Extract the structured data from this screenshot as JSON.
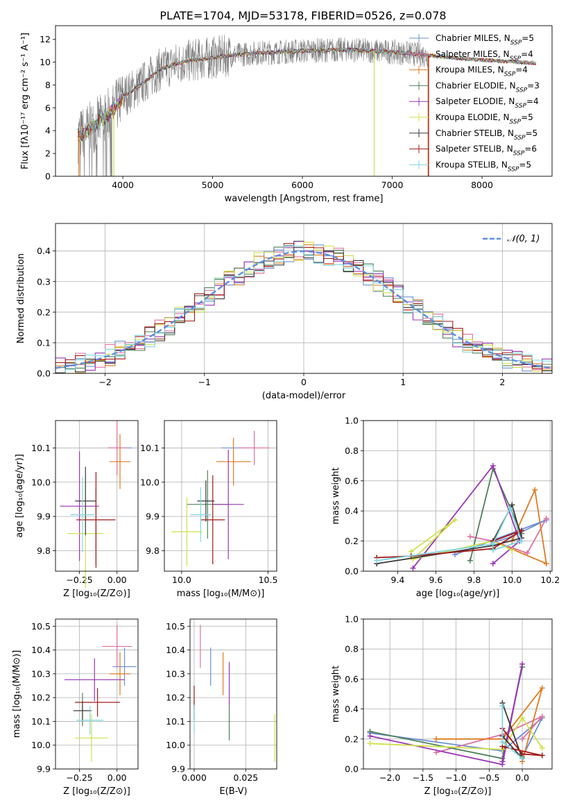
{
  "figure_title": "PLATE=1704, MJD=53178, FIBERID=0526, z=0.078",
  "colors": {
    "Chabrier MILES": "#6a8fd6",
    "Salpeter MILES": "#e06fa0",
    "Kroupa MILES": "#e07a1f",
    "Chabrier ELODIE": "#4f7f5a",
    "Salpeter ELODIE": "#9a35b5",
    "Kroupa ELODIE": "#cfe04a",
    "Chabrier STELIB": "#3a3a3a",
    "Salpeter STELIB": "#a31818",
    "Kroupa STELIB": "#7fd6e0",
    "data": "#808080",
    "normal": "#5b8ee0"
  },
  "chart_data": [
    {
      "id": "spectrum",
      "type": "line",
      "title": "PLATE=1704, MJD=53178, FIBERID=0526, z=0.078",
      "xlabel": "wavelength [Angstrom, rest frame]",
      "ylabel": "Flux [fλ10⁻¹⁷ erg cm⁻² s⁻¹ A⁻¹]",
      "xlim": [
        3250,
        8780
      ],
      "ylim": [
        0,
        13.2
      ],
      "xticks": [
        4000,
        5000,
        6000,
        7000,
        8000
      ],
      "yticks": [
        0,
        2,
        4,
        6,
        8,
        10,
        12
      ],
      "legend_position": "top-right",
      "legend": [
        {
          "label": "Chabrier MILES, N",
          "sub": "SSP",
          "tail": "=5"
        },
        {
          "label": "Salpeter MILES, N",
          "sub": "SSP",
          "tail": "=4"
        },
        {
          "label": "Kroupa MILES, N",
          "sub": "SSP",
          "tail": "=4"
        },
        {
          "label": "Chabrier ELODIE, N",
          "sub": "SSP",
          "tail": "=3"
        },
        {
          "label": "Salpeter ELODIE, N",
          "sub": "SSP",
          "tail": "=4"
        },
        {
          "label": "Kroupa ELODIE, N",
          "sub": "SSP",
          "tail": "=5"
        },
        {
          "label": "Chabrier STELIB, N",
          "sub": "SSP",
          "tail": "=5"
        },
        {
          "label": "Salpeter STELIB, N",
          "sub": "SSP",
          "tail": "=6"
        },
        {
          "label": "Kroupa STELIB, N",
          "sub": "SSP",
          "tail": "=5"
        }
      ],
      "continuum": {
        "x": [
          3500,
          3700,
          3900,
          4000,
          4200,
          4400,
          4600,
          4800,
          5000,
          5200,
          5500,
          6000,
          6500,
          7000,
          7400,
          7800,
          8200,
          8600
        ],
        "y": [
          3.5,
          4.5,
          5.8,
          7.0,
          8.0,
          9.3,
          9.9,
          10.2,
          10.4,
          10.6,
          10.8,
          11.0,
          11.1,
          10.9,
          10.6,
          10.3,
          10.1,
          9.9
        ]
      },
      "data_range": [
        3500,
        7400
      ]
    },
    {
      "id": "residuals",
      "type": "line",
      "xlabel": "(data-model)/error",
      "ylabel": "Normed distribution",
      "xlim": [
        -2.5,
        2.5
      ],
      "ylim": [
        0,
        0.49
      ],
      "xticks": [
        -2,
        -1,
        0,
        1,
        2
      ],
      "yticks": [
        0,
        0.1,
        0.2,
        0.3,
        0.4
      ],
      "legend": [
        "𝒩(0, 1)"
      ],
      "legend_position": "top-right",
      "bin_width": 0.1,
      "reference": {
        "name": "𝒩(0, 1)",
        "mean": 0,
        "sigma": 1
      }
    },
    {
      "id": "age_vs_Z",
      "type": "scatter",
      "xlabel": "Z [log₁₀(Z/Z⊙)]",
      "ylabel": "age  [log₁₀(age/yr)]",
      "xlim": [
        -0.41,
        0.14
      ],
      "ylim": [
        9.74,
        10.18
      ],
      "xticks": [
        -0.25,
        0.0
      ],
      "xtick_labels": [
        "−0.25",
        "0.00"
      ],
      "yticks": [
        9.8,
        9.9,
        10.0,
        10.1
      ],
      "points": [
        {
          "series": "Chabrier MILES",
          "x": 0.02,
          "xerr": 0.08,
          "y": 10.1,
          "yerr": 0.0
        },
        {
          "series": "Salpeter MILES",
          "x": 0.0,
          "xerr": 0.06,
          "y": 10.1,
          "yerr": 0.08
        },
        {
          "series": "Kroupa MILES",
          "x": 0.02,
          "xerr": 0.07,
          "y": 10.06,
          "yerr": 0.08
        },
        {
          "series": "Chabrier ELODIE",
          "x": -0.14,
          "xerr": 0.0,
          "y": 9.87,
          "yerr": 0.11
        },
        {
          "series": "Salpeter ELODIE",
          "x": -0.25,
          "xerr": 0.13,
          "y": 9.93,
          "yerr": 0.16
        },
        {
          "series": "Kroupa ELODIE",
          "x": -0.21,
          "xerr": 0.12,
          "y": 9.85,
          "yerr": 0.16
        },
        {
          "series": "Chabrier STELIB",
          "x": -0.21,
          "xerr": 0.07,
          "y": 9.945,
          "yerr": 0.1
        },
        {
          "series": "Salpeter STELIB",
          "x": -0.14,
          "xerr": 0.13,
          "y": 9.89,
          "yerr": 0.14
        },
        {
          "series": "Kroupa STELIB",
          "x": -0.23,
          "xerr": 0.08,
          "y": 9.905,
          "yerr": 0.11
        }
      ]
    },
    {
      "id": "age_vs_mass",
      "type": "scatter",
      "xlabel": "mass [log₁₀(M/M⊙)]",
      "ylabel": "",
      "xlim": [
        9.9,
        10.55
      ],
      "ylim": [
        9.74,
        10.18
      ],
      "xticks": [
        10.0,
        10.5
      ],
      "yticks": [
        9.8,
        9.9,
        10.0,
        10.1
      ],
      "points": [
        {
          "series": "Chabrier MILES",
          "x": 10.33,
          "xerr": 0.1,
          "y": 10.1,
          "yerr": 0.0
        },
        {
          "series": "Salpeter MILES",
          "x": 10.42,
          "xerr": 0.09,
          "y": 10.1,
          "yerr": 0.05
        },
        {
          "series": "Kroupa MILES",
          "x": 10.3,
          "xerr": 0.1,
          "y": 10.06,
          "yerr": 0.07
        },
        {
          "series": "Chabrier ELODIE",
          "x": 10.15,
          "xerr": 0.12,
          "y": 9.935,
          "yerr": 0.1
        },
        {
          "series": "Salpeter ELODIE",
          "x": 10.27,
          "xerr": 0.09,
          "y": 9.935,
          "yerr": 0.16
        },
        {
          "series": "Kroupa ELODIE",
          "x": 10.03,
          "xerr": 0.09,
          "y": 9.855,
          "yerr": 0.1
        },
        {
          "series": "Chabrier STELIB",
          "x": 10.14,
          "xerr": 0.05,
          "y": 9.945,
          "yerr": 0.06
        },
        {
          "series": "Salpeter STELIB",
          "x": 10.18,
          "xerr": 0.07,
          "y": 9.89,
          "yerr": 0.13
        },
        {
          "series": "Kroupa STELIB",
          "x": 10.11,
          "xerr": 0.06,
          "y": 9.905,
          "yerr": 0.08
        }
      ]
    },
    {
      "id": "weight_vs_age",
      "type": "line",
      "xlabel": "age  [log₁₀(age/yr)]",
      "ylabel": "mass weight",
      "xlim": [
        9.22,
        10.21
      ],
      "ylim": [
        0,
        1.0
      ],
      "xticks": [
        9.4,
        9.6,
        9.8,
        10.0,
        10.2
      ],
      "yticks": [
        0,
        0.2,
        0.4,
        0.6,
        0.8,
        1.0
      ],
      "series": [
        {
          "name": "Chabrier MILES",
          "x": [
            9.7,
            10.18,
            10.0,
            9.9
          ],
          "y": [
            0.11,
            0.34,
            0.23,
            0.19
          ]
        },
        {
          "name": "Salpeter MILES",
          "x": [
            9.78,
            9.9,
            10.08,
            10.18
          ],
          "y": [
            0.23,
            0.2,
            0.12,
            0.35
          ]
        },
        {
          "name": "Kroupa MILES",
          "x": [
            10.0,
            10.12,
            10.18,
            9.9
          ],
          "y": [
            0.2,
            0.54,
            0.05,
            0.2
          ]
        },
        {
          "name": "Chabrier ELODIE",
          "x": [
            9.78,
            9.9,
            10.05
          ],
          "y": [
            0.07,
            0.68,
            0.25
          ]
        },
        {
          "name": "Salpeter ELODIE",
          "x": [
            9.48,
            9.9,
            10.04,
            9.9
          ],
          "y": [
            0.02,
            0.7,
            0.2,
            0.05
          ]
        },
        {
          "name": "Kroupa ELODIE",
          "x": [
            9.47,
            9.7,
            9.48,
            9.9,
            10.0
          ],
          "y": [
            0.13,
            0.34,
            0.08,
            0.2,
            0.14
          ]
        },
        {
          "name": "Chabrier STELIB",
          "x": [
            9.29,
            9.9,
            10.05,
            10.0,
            9.9
          ],
          "y": [
            0.05,
            0.17,
            0.22,
            0.44,
            0.2
          ]
        },
        {
          "name": "Salpeter STELIB",
          "x": [
            9.29,
            9.47,
            9.9,
            10.05,
            9.9
          ],
          "y": [
            0.09,
            0.1,
            0.15,
            0.27,
            0.2
          ]
        },
        {
          "name": "Kroupa STELIB",
          "x": [
            9.29,
            9.9,
            9.99,
            10.05,
            9.9
          ],
          "y": [
            0.07,
            0.18,
            0.42,
            0.2,
            0.14
          ]
        }
      ]
    },
    {
      "id": "mass_vs_Z",
      "type": "scatter",
      "xlabel": "Z [log₁₀(Z/Z⊙)]",
      "ylabel": "mass [log₁₀(M/M⊙)]",
      "xlim": [
        -0.41,
        0.14
      ],
      "ylim": [
        9.9,
        10.53
      ],
      "xticks": [
        -0.25,
        0.0
      ],
      "xtick_labels": [
        "−0.25",
        "0.00"
      ],
      "yticks": [
        9.9,
        10.0,
        10.1,
        10.2,
        10.3,
        10.4,
        10.5
      ],
      "points": [
        {
          "series": "Chabrier MILES",
          "x": 0.05,
          "xerr": 0.08,
          "y": 10.33,
          "yerr": 0.08
        },
        {
          "series": "Salpeter MILES",
          "x": 0.0,
          "xerr": 0.1,
          "y": 10.415,
          "yerr": 0.09
        },
        {
          "series": "Kroupa MILES",
          "x": 0.02,
          "xerr": 0.07,
          "y": 10.3,
          "yerr": 0.09
        },
        {
          "series": "Chabrier ELODIE",
          "x": -0.23,
          "xerr": 0.0,
          "y": 10.15,
          "yerr": 0.07
        },
        {
          "series": "Salpeter ELODIE",
          "x": -0.15,
          "xerr": 0.2,
          "y": 10.275,
          "yerr": 0.09
        },
        {
          "series": "Kroupa ELODIE",
          "x": -0.17,
          "xerr": 0.11,
          "y": 10.03,
          "yerr": 0.1
        },
        {
          "series": "Chabrier STELIB",
          "x": -0.23,
          "xerr": 0.06,
          "y": 10.145,
          "yerr": 0.04
        },
        {
          "series": "Salpeter STELIB",
          "x": -0.13,
          "xerr": 0.15,
          "y": 10.18,
          "yerr": 0.06
        },
        {
          "series": "Kroupa STELIB",
          "x": -0.18,
          "xerr": 0.09,
          "y": 10.105,
          "yerr": 0.06
        }
      ]
    },
    {
      "id": "mass_vs_ebv",
      "type": "scatter",
      "xlabel": "E(B-V)",
      "ylabel": "",
      "xlim": [
        -0.002,
        0.04
      ],
      "ylim": [
        9.9,
        10.53
      ],
      "xticks": [
        0.0,
        0.025
      ],
      "xtick_labels": [
        "0.000",
        "0.025"
      ],
      "yticks": [
        9.9,
        10.0,
        10.1,
        10.2,
        10.3,
        10.4,
        10.5
      ],
      "points": [
        {
          "series": "Chabrier MILES",
          "x": 0.008,
          "xerr": 0.0,
          "y": 10.33,
          "yerr": 0.08
        },
        {
          "series": "Salpeter MILES",
          "x": 0.003,
          "xerr": 0.0,
          "y": 10.415,
          "yerr": 0.09
        },
        {
          "series": "Kroupa MILES",
          "x": 0.014,
          "xerr": 0.0,
          "y": 10.3,
          "yerr": 0.09
        },
        {
          "series": "Chabrier ELODIE",
          "x": 0.017,
          "xerr": 0.0,
          "y": 10.1,
          "yerr": 0.08
        },
        {
          "series": "Salpeter ELODIE",
          "x": 0.017,
          "xerr": 0.0,
          "y": 10.26,
          "yerr": 0.09
        },
        {
          "series": "Kroupa ELODIE",
          "x": 0.039,
          "xerr": 0.0,
          "y": 10.03,
          "yerr": 0.1
        },
        {
          "series": "Chabrier STELIB",
          "x": 0.0,
          "xerr": 0.0,
          "y": 10.145,
          "yerr": 0.04
        },
        {
          "series": "Salpeter STELIB",
          "x": 0.0,
          "xerr": 0.0,
          "y": 10.2,
          "yerr": 0.05
        },
        {
          "series": "Kroupa STELIB",
          "x": 0.0,
          "xerr": 0.0,
          "y": 10.11,
          "yerr": 0.06
        }
      ]
    },
    {
      "id": "weight_vs_Z",
      "type": "line",
      "xlabel": "Z [log₁₀(Z/Z⊙)]",
      "ylabel": "mass weight",
      "xlim": [
        -2.4,
        0.45
      ],
      "ylim": [
        0,
        1.0
      ],
      "xticks": [
        -2.0,
        -1.5,
        -1.0,
        -0.5,
        0.0
      ],
      "xtick_labels": [
        "−2.0",
        "−1.5",
        "−1.0",
        "−0.5",
        "0.0"
      ],
      "yticks": [
        0,
        0.2,
        0.4,
        0.6,
        0.8,
        1.0
      ],
      "series": [
        {
          "name": "Chabrier MILES",
          "x": [
            -2.3,
            -0.3,
            0.3,
            0.0
          ],
          "y": [
            0.24,
            0.12,
            0.34,
            0.08
          ]
        },
        {
          "name": "Salpeter MILES",
          "x": [
            -1.3,
            -0.3,
            0.3,
            0.0
          ],
          "y": [
            0.11,
            0.23,
            0.35,
            0.2
          ]
        },
        {
          "name": "Kroupa MILES",
          "x": [
            -1.3,
            -0.3,
            0.3,
            0.0
          ],
          "y": [
            0.2,
            0.2,
            0.54,
            0.05
          ]
        },
        {
          "name": "Chabrier ELODIE",
          "x": [
            -2.3,
            -0.3,
            0.0
          ],
          "y": [
            0.25,
            0.07,
            0.68
          ]
        },
        {
          "name": "Salpeter ELODIE",
          "x": [
            -2.3,
            -0.3,
            0.0,
            -0.3
          ],
          "y": [
            0.22,
            0.03,
            0.7,
            0.05
          ]
        },
        {
          "name": "Kroupa ELODIE",
          "x": [
            -2.3,
            -0.3,
            0.0,
            0.3
          ],
          "y": [
            0.17,
            0.13,
            0.34,
            0.14
          ]
        },
        {
          "name": "Chabrier STELIB",
          "x": [
            -0.3,
            0.0,
            -0.3
          ],
          "y": [
            0.44,
            0.07,
            0.22
          ]
        },
        {
          "name": "Salpeter STELIB",
          "x": [
            -0.3,
            0.0,
            0.3,
            -0.3
          ],
          "y": [
            0.27,
            0.1,
            0.09,
            0.15
          ]
        },
        {
          "name": "Kroupa STELIB",
          "x": [
            -0.3,
            -0.3,
            0.0
          ],
          "y": [
            0.42,
            0.18,
            0.07
          ]
        }
      ]
    }
  ]
}
